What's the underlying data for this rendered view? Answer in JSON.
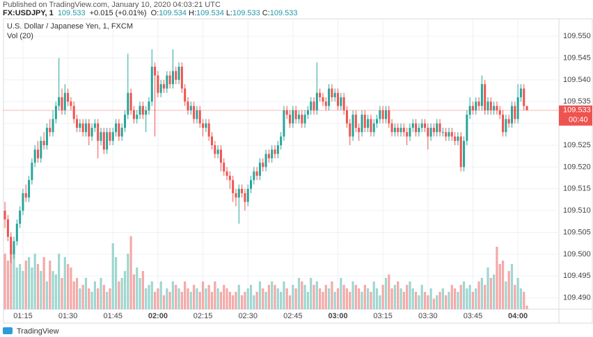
{
  "header": {
    "published": "Published on TradingView.com, January 10, 2020 04:03:21 UTC",
    "symbol": "FX:USDJPY, 1",
    "last": "109.533",
    "change": "+0.015 (+0.01%)",
    "ohlc": [
      {
        "key": "O:",
        "value": "109.534"
      },
      {
        "key": "H:",
        "value": "109.534"
      },
      {
        "key": "L:",
        "value": "109.533"
      },
      {
        "key": "C:",
        "value": "109.533"
      }
    ]
  },
  "footer": {
    "brand": "TradingView"
  },
  "chart_data": {
    "type": "candlestick",
    "title": "U.S. Dollar / Japanese Yen, 1, FXCM",
    "subtitle": "Vol (20)",
    "last_price": 109.533,
    "countdown": "00:40",
    "colors": {
      "up": "#26a69a",
      "down": "#ef5350",
      "volume_up": "#9fd6d0",
      "volume_down": "#f4a9a7",
      "grid": "#eef0f5"
    },
    "grid": true,
    "ylim": [
      109.4874,
      109.554
    ],
    "yticks": [
      {
        "value": 109.49,
        "label": "109.490"
      },
      109.495,
      {
        "value": 109.5,
        "label": "109.500"
      },
      109.505,
      {
        "value": 109.51,
        "label": "109.510"
      },
      109.515,
      {
        "value": 109.52,
        "label": "109.520"
      },
      109.525,
      {
        "value": 109.53,
        "label": "109.530"
      },
      109.535,
      {
        "value": 109.54,
        "label": "109.540"
      },
      109.545,
      {
        "value": 109.55,
        "label": "109.550"
      }
    ],
    "categories": [
      null,
      null,
      null,
      null,
      null,
      null,
      "01:15",
      null,
      null,
      null,
      null,
      null,
      null,
      null,
      null,
      null,
      null,
      null,
      null,
      null,
      null,
      "01:30",
      null,
      null,
      null,
      null,
      null,
      null,
      null,
      null,
      null,
      null,
      null,
      null,
      null,
      null,
      "01:45",
      null,
      null,
      null,
      null,
      null,
      null,
      null,
      null,
      null,
      null,
      null,
      null,
      null,
      null,
      "02:00",
      null,
      null,
      null,
      null,
      null,
      null,
      null,
      null,
      null,
      null,
      null,
      null,
      null,
      null,
      "02:15",
      null,
      null,
      null,
      null,
      null,
      null,
      null,
      null,
      null,
      null,
      null,
      null,
      null,
      null,
      "02:30",
      null,
      null,
      null,
      null,
      null,
      null,
      null,
      null,
      null,
      null,
      null,
      null,
      null,
      null,
      "02:45",
      null,
      null,
      null,
      null,
      null,
      null,
      null,
      null,
      null,
      null,
      null,
      null,
      null,
      null,
      "03:00",
      null,
      null,
      null,
      null,
      null,
      null,
      null,
      null,
      null,
      null,
      null,
      null,
      null,
      null,
      "03:15",
      null,
      null,
      null,
      null,
      null,
      null,
      null,
      null,
      null,
      null,
      null,
      null,
      null,
      null,
      "03:30",
      null,
      null,
      null,
      null,
      null,
      null,
      null,
      null,
      null,
      null,
      null,
      null,
      null,
      null,
      "03:45",
      null,
      null,
      null,
      null,
      null,
      null,
      null,
      null,
      null,
      null,
      null,
      null,
      null,
      null,
      "04:00",
      null,
      null,
      null
    ],
    "open": [
      109.51,
      109.508,
      109.504,
      109.5,
      109.503,
      109.507,
      109.51,
      109.514,
      109.513,
      109.517,
      109.521,
      109.524,
      109.522,
      109.526,
      109.525,
      109.529,
      109.528,
      109.531,
      109.534,
      109.536,
      109.533,
      109.537,
      109.535,
      109.534,
      109.531,
      109.529,
      109.53,
      109.528,
      109.53,
      109.527,
      109.529,
      109.53,
      109.526,
      109.528,
      109.524,
      109.528,
      109.526,
      109.528,
      109.53,
      109.527,
      109.529,
      109.532,
      109.537,
      109.533,
      109.531,
      109.532,
      109.534,
      109.532,
      109.533,
      109.535,
      109.543,
      109.541,
      109.537,
      109.539,
      109.538,
      109.541,
      109.539,
      109.542,
      109.54,
      109.543,
      109.538,
      109.535,
      109.533,
      109.534,
      109.531,
      109.533,
      109.53,
      109.529,
      109.53,
      109.527,
      109.525,
      109.523,
      109.524,
      109.521,
      109.519,
      109.518,
      109.517,
      109.514,
      109.513,
      109.515,
      109.514,
      109.512,
      109.515,
      109.517,
      109.519,
      109.518,
      109.521,
      109.52,
      109.523,
      109.522,
      109.524,
      109.523,
      109.525,
      109.527,
      109.533,
      109.532,
      109.53,
      109.533,
      109.531,
      109.532,
      109.53,
      109.532,
      109.533,
      109.535,
      109.533,
      109.537,
      109.536,
      109.535,
      109.534,
      109.538,
      109.536,
      109.537,
      109.534,
      109.536,
      109.533,
      109.53,
      109.527,
      109.532,
      109.529,
      109.528,
      109.532,
      109.529,
      109.531,
      109.528,
      109.53,
      109.531,
      109.533,
      109.531,
      109.533,
      109.53,
      109.528,
      109.529,
      109.528,
      109.529,
      109.528,
      109.527,
      109.529,
      109.53,
      109.528,
      109.529,
      109.53,
      109.529,
      109.527,
      109.529,
      109.528,
      109.53,
      109.528,
      109.528,
      109.527,
      109.528,
      109.527,
      109.526,
      109.527,
      109.52,
      109.526,
      109.532,
      109.534,
      109.533,
      109.535,
      109.534,
      109.539,
      109.533,
      109.535,
      109.533,
      109.534,
      109.533,
      109.532,
      109.528,
      109.531,
      109.53,
      109.534,
      109.531,
      109.536,
      109.538,
      109.534
    ],
    "high": [
      109.512,
      109.509,
      109.505,
      109.504,
      109.508,
      109.511,
      109.515,
      109.516,
      109.518,
      109.522,
      109.525,
      109.526,
      109.527,
      109.528,
      109.53,
      109.531,
      109.533,
      109.535,
      109.545,
      109.538,
      109.539,
      109.538,
      109.536,
      109.535,
      109.532,
      109.531,
      109.531,
      109.531,
      109.531,
      109.53,
      109.531,
      109.531,
      109.529,
      109.529,
      109.529,
      109.529,
      109.529,
      109.531,
      109.531,
      109.53,
      109.533,
      109.546,
      109.538,
      109.534,
      109.533,
      109.535,
      109.535,
      109.534,
      109.536,
      109.547,
      109.544,
      109.542,
      109.54,
      109.54,
      109.542,
      109.542,
      109.547,
      109.543,
      109.544,
      109.544,
      109.539,
      109.536,
      109.535,
      109.535,
      109.534,
      109.534,
      109.531,
      109.531,
      109.531,
      109.528,
      109.526,
      109.525,
      109.525,
      109.522,
      109.52,
      109.519,
      109.518,
      109.515,
      109.516,
      109.516,
      109.515,
      109.516,
      109.518,
      109.52,
      109.52,
      109.522,
      109.522,
      109.524,
      109.524,
      109.525,
      109.525,
      109.526,
      109.528,
      109.534,
      109.534,
      109.533,
      109.534,
      109.534,
      109.533,
      109.533,
      109.533,
      109.534,
      109.536,
      109.536,
      109.544,
      109.538,
      109.537,
      109.536,
      109.539,
      109.539,
      109.538,
      109.538,
      109.537,
      109.537,
      109.534,
      109.531,
      109.533,
      109.533,
      109.53,
      109.533,
      109.533,
      109.532,
      109.532,
      109.531,
      109.532,
      109.534,
      109.534,
      109.534,
      109.534,
      109.531,
      109.53,
      109.53,
      109.53,
      109.53,
      109.529,
      109.53,
      109.531,
      109.531,
      109.53,
      109.531,
      109.531,
      109.53,
      109.53,
      109.53,
      109.531,
      109.531,
      109.529,
      109.529,
      109.529,
      109.529,
      109.528,
      109.528,
      109.528,
      109.527,
      109.533,
      109.536,
      109.535,
      109.536,
      109.536,
      109.541,
      109.54,
      109.536,
      109.536,
      109.535,
      109.535,
      109.534,
      109.533,
      109.532,
      109.532,
      109.535,
      109.535,
      109.539,
      109.539,
      109.539,
      109.534
    ],
    "low": [
      109.506,
      109.503,
      109.498,
      109.499,
      109.502,
      109.506,
      109.509,
      109.512,
      109.512,
      109.516,
      109.52,
      109.521,
      109.521,
      109.524,
      109.524,
      109.527,
      109.527,
      109.53,
      109.533,
      109.532,
      109.532,
      109.534,
      109.533,
      109.53,
      109.528,
      109.528,
      109.527,
      109.527,
      109.525,
      109.526,
      109.528,
      109.522,
      109.525,
      109.523,
      109.523,
      109.525,
      109.525,
      109.527,
      109.526,
      109.526,
      109.528,
      109.531,
      109.532,
      109.53,
      109.53,
      109.531,
      109.531,
      109.528,
      109.532,
      109.534,
      109.527,
      109.536,
      109.536,
      109.537,
      109.537,
      109.538,
      109.538,
      109.539,
      109.539,
      109.537,
      109.534,
      109.532,
      109.532,
      109.53,
      109.53,
      109.529,
      109.527,
      109.528,
      109.526,
      109.524,
      109.522,
      109.522,
      109.519,
      109.518,
      109.517,
      109.515,
      109.512,
      109.511,
      109.507,
      109.513,
      109.51,
      109.511,
      109.514,
      109.516,
      109.517,
      109.517,
      109.519,
      109.519,
      109.521,
      109.521,
      109.522,
      109.522,
      109.524,
      109.526,
      109.531,
      109.529,
      109.529,
      109.53,
      109.53,
      109.529,
      109.529,
      109.531,
      109.532,
      109.532,
      109.532,
      109.535,
      109.534,
      109.533,
      109.533,
      109.535,
      109.535,
      109.533,
      109.533,
      109.532,
      109.529,
      109.525,
      109.526,
      109.528,
      109.526,
      109.527,
      109.528,
      109.528,
      109.527,
      109.527,
      109.529,
      109.53,
      109.53,
      109.53,
      109.529,
      109.527,
      109.527,
      109.527,
      109.527,
      109.527,
      109.525,
      109.526,
      109.528,
      109.527,
      109.527,
      109.528,
      109.528,
      109.524,
      109.526,
      109.527,
      109.527,
      109.527,
      109.527,
      109.526,
      109.526,
      109.526,
      109.525,
      109.525,
      109.519,
      109.519,
      109.525,
      109.531,
      109.532,
      109.532,
      109.533,
      109.533,
      109.532,
      109.532,
      109.532,
      109.532,
      109.532,
      109.531,
      109.527,
      109.527,
      109.529,
      109.529,
      109.53,
      109.53,
      109.535,
      109.533,
      109.533
    ],
    "close": [
      109.508,
      109.504,
      109.5,
      109.503,
      109.507,
      109.51,
      109.514,
      109.513,
      109.517,
      109.521,
      109.524,
      109.522,
      109.526,
      109.525,
      109.529,
      109.528,
      109.531,
      109.534,
      109.536,
      109.533,
      109.537,
      109.535,
      109.534,
      109.531,
      109.529,
      109.53,
      109.528,
      109.53,
      109.527,
      109.529,
      109.53,
      109.526,
      109.528,
      109.524,
      109.528,
      109.526,
      109.528,
      109.53,
      109.527,
      109.529,
      109.532,
      109.537,
      109.533,
      109.531,
      109.532,
      109.534,
      109.532,
      109.533,
      109.535,
      109.543,
      109.541,
      109.537,
      109.539,
      109.538,
      109.541,
      109.539,
      109.542,
      109.54,
      109.543,
      109.538,
      109.535,
      109.533,
      109.534,
      109.531,
      109.533,
      109.53,
      109.529,
      109.53,
      109.527,
      109.525,
      109.523,
      109.524,
      109.521,
      109.519,
      109.518,
      109.517,
      109.514,
      109.513,
      109.515,
      109.514,
      109.512,
      109.515,
      109.517,
      109.519,
      109.518,
      109.521,
      109.52,
      109.523,
      109.522,
      109.524,
      109.523,
      109.525,
      109.527,
      109.533,
      109.532,
      109.53,
      109.533,
      109.531,
      109.532,
      109.53,
      109.532,
      109.533,
      109.535,
      109.533,
      109.537,
      109.536,
      109.535,
      109.534,
      109.538,
      109.536,
      109.537,
      109.534,
      109.536,
      109.533,
      109.53,
      109.527,
      109.532,
      109.529,
      109.528,
      109.532,
      109.529,
      109.531,
      109.528,
      109.53,
      109.531,
      109.533,
      109.531,
      109.533,
      109.53,
      109.528,
      109.529,
      109.528,
      109.529,
      109.528,
      109.527,
      109.529,
      109.53,
      109.528,
      109.529,
      109.53,
      109.529,
      109.527,
      109.529,
      109.528,
      109.53,
      109.528,
      109.528,
      109.527,
      109.528,
      109.527,
      109.526,
      109.527,
      109.52,
      109.526,
      109.532,
      109.534,
      109.533,
      109.535,
      109.534,
      109.539,
      109.533,
      109.535,
      109.533,
      109.534,
      109.533,
      109.532,
      109.528,
      109.531,
      109.53,
      109.534,
      109.531,
      109.536,
      109.538,
      109.534,
      109.533
    ],
    "volume": [
      80,
      70,
      85,
      90,
      60,
      65,
      55,
      70,
      75,
      60,
      80,
      65,
      55,
      75,
      40,
      70,
      55,
      50,
      80,
      45,
      75,
      65,
      60,
      40,
      45,
      30,
      35,
      45,
      30,
      25,
      40,
      30,
      45,
      35,
      25,
      30,
      95,
      75,
      40,
      45,
      55,
      80,
      105,
      50,
      60,
      45,
      55,
      30,
      35,
      40,
      25,
      30,
      40,
      20,
      30,
      25,
      40,
      35,
      30,
      25,
      40,
      30,
      25,
      35,
      30,
      25,
      40,
      30,
      35,
      25,
      40,
      30,
      25,
      35,
      30,
      25,
      20,
      25,
      35,
      20,
      25,
      30,
      35,
      20,
      25,
      40,
      30,
      25,
      35,
      40,
      35,
      30,
      25,
      40,
      30,
      20,
      35,
      30,
      45,
      40,
      35,
      25,
      45,
      35,
      40,
      30,
      25,
      35,
      30,
      40,
      25,
      30,
      45,
      35,
      30,
      25,
      40,
      35,
      30,
      25,
      35,
      30,
      25,
      40,
      30,
      20,
      35,
      45,
      50,
      30,
      35,
      40,
      30,
      25,
      35,
      40,
      30,
      25,
      20,
      35,
      25,
      20,
      30,
      15,
      20,
      25,
      30,
      20,
      25,
      35,
      30,
      25,
      35,
      40,
      30,
      35,
      25,
      30,
      40,
      45,
      35,
      60,
      45,
      50,
      90,
      65,
      70,
      40,
      55,
      65,
      35,
      45,
      30,
      25,
      5
    ]
  }
}
